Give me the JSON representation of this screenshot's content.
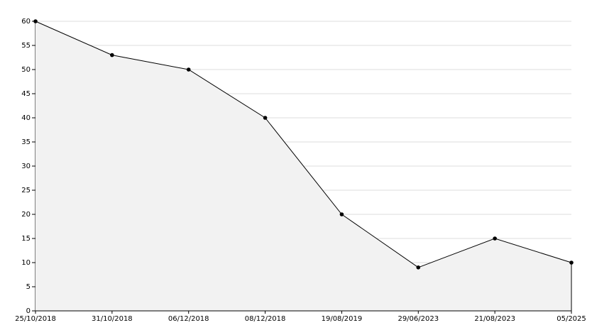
{
  "chart_data": {
    "type": "area",
    "categories": [
      "25/10/2018",
      "31/10/2018",
      "06/12/2018",
      "08/12/2018",
      "19/08/2019",
      "29/06/2023",
      "21/08/2023",
      "05/2025"
    ],
    "values": [
      60,
      53,
      50,
      40,
      20,
      9,
      15,
      10
    ],
    "color": "#000000",
    "fill": "#f2f2f2",
    "ylim": [
      0,
      60
    ],
    "yticks": [
      0,
      5,
      10,
      15,
      20,
      25,
      30,
      35,
      40,
      45,
      50,
      55,
      60
    ],
    "grid": true
  }
}
